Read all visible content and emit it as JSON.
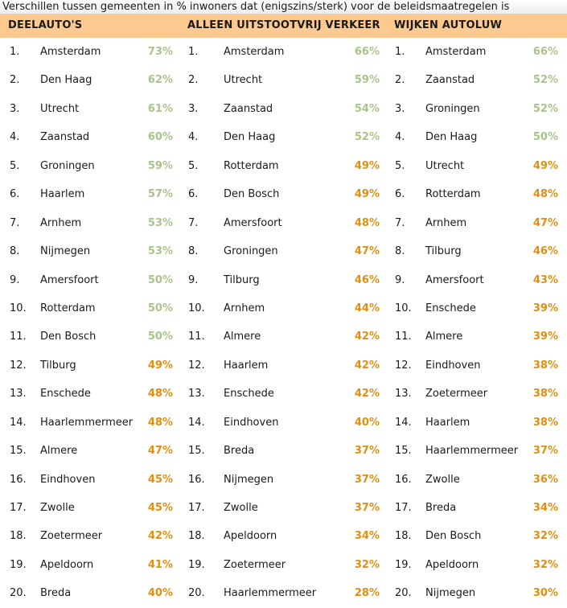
{
  "title": "Verschillen tussen gemeenten in % inwoners dat (enigszins/sterk) voor de beleidsmaatregelen is",
  "colors": {
    "header_bg": "#fcc98e",
    "high": "#a8c48a",
    "low": "#e08f12",
    "text": "#1a1a1a"
  },
  "columns": [
    {
      "header": "DEELAUTO'S",
      "rows": [
        {
          "rank": "1.",
          "city": "Amsterdam",
          "pct": "73%",
          "tone": "high"
        },
        {
          "rank": "2.",
          "city": "Den Haag",
          "pct": "62%",
          "tone": "high"
        },
        {
          "rank": "3.",
          "city": "Utrecht",
          "pct": "61%",
          "tone": "high"
        },
        {
          "rank": "4.",
          "city": "Zaanstad",
          "pct": "60%",
          "tone": "high"
        },
        {
          "rank": "5.",
          "city": "Groningen",
          "pct": "59%",
          "tone": "high"
        },
        {
          "rank": "6.",
          "city": "Haarlem",
          "pct": "57%",
          "tone": "high"
        },
        {
          "rank": "7.",
          "city": "Arnhem",
          "pct": "53%",
          "tone": "high"
        },
        {
          "rank": "8.",
          "city": "Nijmegen",
          "pct": "53%",
          "tone": "high"
        },
        {
          "rank": "9.",
          "city": "Amersfoort",
          "pct": "50%",
          "tone": "high"
        },
        {
          "rank": "10.",
          "city": "Rotterdam",
          "pct": "50%",
          "tone": "high"
        },
        {
          "rank": "11.",
          "city": "Den Bosch",
          "pct": "50%",
          "tone": "high"
        },
        {
          "rank": "12.",
          "city": "Tilburg",
          "pct": "49%",
          "tone": "low"
        },
        {
          "rank": "13.",
          "city": "Enschede",
          "pct": "48%",
          "tone": "low"
        },
        {
          "rank": "14.",
          "city": "Haarlemmermeer",
          "pct": "48%",
          "tone": "low"
        },
        {
          "rank": "15.",
          "city": "Almere",
          "pct": "47%",
          "tone": "low"
        },
        {
          "rank": "16.",
          "city": "Eindhoven",
          "pct": "45%",
          "tone": "low"
        },
        {
          "rank": "17.",
          "city": "Zwolle",
          "pct": "45%",
          "tone": "low"
        },
        {
          "rank": "18.",
          "city": "Zoetermeer",
          "pct": "42%",
          "tone": "low"
        },
        {
          "rank": "19.",
          "city": "Apeldoorn",
          "pct": "41%",
          "tone": "low"
        },
        {
          "rank": "20.",
          "city": "Breda",
          "pct": "40%",
          "tone": "low"
        }
      ]
    },
    {
      "header": "ALLEEN UITSTOOTVRIJ VERKEER",
      "rows": [
        {
          "rank": "1.",
          "city": "Amsterdam",
          "pct": "66%",
          "tone": "high"
        },
        {
          "rank": "2.",
          "city": "Utrecht",
          "pct": "59%",
          "tone": "high"
        },
        {
          "rank": "3.",
          "city": "Zaanstad",
          "pct": "54%",
          "tone": "high"
        },
        {
          "rank": "4.",
          "city": "Den Haag",
          "pct": "52%",
          "tone": "high"
        },
        {
          "rank": "5.",
          "city": "Rotterdam",
          "pct": "49%",
          "tone": "low"
        },
        {
          "rank": "6.",
          "city": "Den Bosch",
          "pct": "49%",
          "tone": "low"
        },
        {
          "rank": "7.",
          "city": "Amersfoort",
          "pct": "48%",
          "tone": "low"
        },
        {
          "rank": "8.",
          "city": "Groningen",
          "pct": "47%",
          "tone": "low"
        },
        {
          "rank": "9.",
          "city": "Tilburg",
          "pct": "46%",
          "tone": "low"
        },
        {
          "rank": "10.",
          "city": "Arnhem",
          "pct": "44%",
          "tone": "low"
        },
        {
          "rank": "11.",
          "city": "Almere",
          "pct": "42%",
          "tone": "low"
        },
        {
          "rank": "12.",
          "city": "Haarlem",
          "pct": "42%",
          "tone": "low"
        },
        {
          "rank": "13.",
          "city": "Enschede",
          "pct": "42%",
          "tone": "low"
        },
        {
          "rank": "14.",
          "city": "Eindhoven",
          "pct": "40%",
          "tone": "low"
        },
        {
          "rank": "15.",
          "city": "Breda",
          "pct": "37%",
          "tone": "low"
        },
        {
          "rank": "16.",
          "city": "Nijmegen",
          "pct": "37%",
          "tone": "low"
        },
        {
          "rank": "17.",
          "city": "Zwolle",
          "pct": "37%",
          "tone": "low"
        },
        {
          "rank": "18.",
          "city": "Apeldoorn",
          "pct": "34%",
          "tone": "low"
        },
        {
          "rank": "19.",
          "city": "Zoetermeer",
          "pct": "32%",
          "tone": "low"
        },
        {
          "rank": "20.",
          "city": "Haarlemmermeer",
          "pct": "28%",
          "tone": "low"
        }
      ]
    },
    {
      "header": "WIJKEN AUTOLUW",
      "rows": [
        {
          "rank": "1.",
          "city": "Amsterdam",
          "pct": "66%",
          "tone": "high"
        },
        {
          "rank": "2.",
          "city": "Zaanstad",
          "pct": "52%",
          "tone": "high"
        },
        {
          "rank": "3.",
          "city": "Groningen",
          "pct": "52%",
          "tone": "high"
        },
        {
          "rank": "4.",
          "city": "Den Haag",
          "pct": "50%",
          "tone": "high"
        },
        {
          "rank": "5.",
          "city": "Utrecht",
          "pct": "49%",
          "tone": "low"
        },
        {
          "rank": "6.",
          "city": "Rotterdam",
          "pct": "48%",
          "tone": "low"
        },
        {
          "rank": "7.",
          "city": "Arnhem",
          "pct": "47%",
          "tone": "low"
        },
        {
          "rank": "8.",
          "city": "Tilburg",
          "pct": "46%",
          "tone": "low"
        },
        {
          "rank": "9.",
          "city": "Amersfoort",
          "pct": "43%",
          "tone": "low"
        },
        {
          "rank": "10.",
          "city": "Enschede",
          "pct": "39%",
          "tone": "low"
        },
        {
          "rank": "11.",
          "city": "Almere",
          "pct": "39%",
          "tone": "low"
        },
        {
          "rank": "12.",
          "city": "Eindhoven",
          "pct": "38%",
          "tone": "low"
        },
        {
          "rank": "13.",
          "city": "Zoetermeer",
          "pct": "38%",
          "tone": "low"
        },
        {
          "rank": "14.",
          "city": "Haarlem",
          "pct": "38%",
          "tone": "low"
        },
        {
          "rank": "15.",
          "city": "Haarlemmermeer",
          "pct": "37%",
          "tone": "low"
        },
        {
          "rank": "16.",
          "city": "Zwolle",
          "pct": "36%",
          "tone": "low"
        },
        {
          "rank": "17.",
          "city": "Breda",
          "pct": "34%",
          "tone": "low"
        },
        {
          "rank": "18.",
          "city": "Den Bosch",
          "pct": "32%",
          "tone": "low"
        },
        {
          "rank": "19.",
          "city": "Apeldoorn",
          "pct": "32%",
          "tone": "low"
        },
        {
          "rank": "20.",
          "city": "Nijmegen",
          "pct": "30%",
          "tone": "low"
        }
      ]
    }
  ]
}
